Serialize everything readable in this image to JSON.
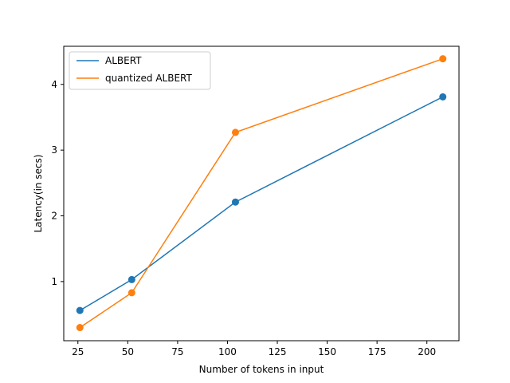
{
  "chart_data": {
    "type": "line",
    "title": "",
    "xlabel": "Number of tokens in input",
    "ylabel": "Latency(in secs)",
    "xlim": [
      17.9,
      216.1
    ],
    "ylim": [
      0.1,
      4.58
    ],
    "xticks": [
      25,
      50,
      75,
      100,
      125,
      150,
      175,
      200
    ],
    "yticks": [
      1,
      2,
      3,
      4
    ],
    "grid": false,
    "legend_position": "upper-left",
    "series": [
      {
        "name": "ALBERT",
        "color": "#1f77b4",
        "marker": "circle",
        "x": [
          26,
          52,
          104,
          208
        ],
        "y": [
          0.56,
          1.03,
          2.21,
          3.81
        ]
      },
      {
        "name": "quantized ALBERT",
        "color": "#ff7f0e",
        "marker": "circle",
        "x": [
          26,
          52,
          104,
          208
        ],
        "y": [
          0.3,
          0.83,
          3.27,
          4.39
        ]
      }
    ]
  }
}
